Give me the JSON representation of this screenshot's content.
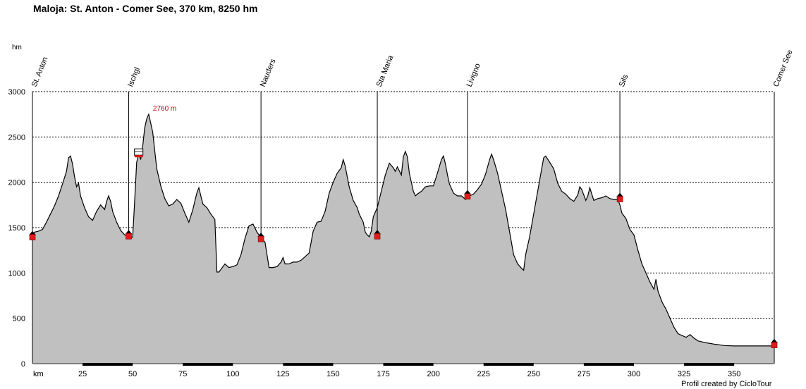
{
  "title": "Maloja: St. Anton - Comer See, 370 km, 8250 hm",
  "credit": "Profil created by CicloTour",
  "colors": {
    "fill": "#c0c0c0",
    "line": "#000000",
    "marker": "#e41a1a",
    "annotation": "#cc0000"
  },
  "chart_data": {
    "type": "area",
    "title": "Maloja: St. Anton - Comer See, 370 km, 8250 hm",
    "xlabel": "km",
    "ylabel": "hm",
    "xlim": [
      0,
      370
    ],
    "ylim": [
      0,
      3000
    ],
    "xticks": [
      25,
      50,
      75,
      100,
      125,
      150,
      175,
      200,
      225,
      250,
      275,
      300,
      325,
      350
    ],
    "yticks": [
      0,
      500,
      1000,
      1500,
      2000,
      2500,
      3000
    ],
    "grid": true,
    "profile": [
      [
        0,
        1410
      ],
      [
        1,
        1450
      ],
      [
        3,
        1460
      ],
      [
        5,
        1480
      ],
      [
        7,
        1560
      ],
      [
        9,
        1650
      ],
      [
        11,
        1740
      ],
      [
        13,
        1850
      ],
      [
        15,
        1980
      ],
      [
        17,
        2120
      ],
      [
        18,
        2270
      ],
      [
        19,
        2290
      ],
      [
        20,
        2200
      ],
      [
        21,
        2060
      ],
      [
        22,
        1950
      ],
      [
        23,
        1990
      ],
      [
        24,
        1850
      ],
      [
        26,
        1720
      ],
      [
        28,
        1620
      ],
      [
        30,
        1580
      ],
      [
        32,
        1680
      ],
      [
        34,
        1750
      ],
      [
        36,
        1700
      ],
      [
        37,
        1790
      ],
      [
        38,
        1850
      ],
      [
        39,
        1790
      ],
      [
        40,
        1680
      ],
      [
        42,
        1560
      ],
      [
        44,
        1470
      ],
      [
        46,
        1420
      ],
      [
        48,
        1400
      ],
      [
        49,
        1380
      ],
      [
        50,
        1400
      ],
      [
        51,
        1800
      ],
      [
        52,
        2220
      ],
      [
        53,
        2320
      ],
      [
        54,
        2250
      ],
      [
        55,
        2400
      ],
      [
        56,
        2600
      ],
      [
        57,
        2700
      ],
      [
        58,
        2750
      ],
      [
        59,
        2650
      ],
      [
        60,
        2550
      ],
      [
        61,
        2350
      ],
      [
        62,
        2150
      ],
      [
        64,
        1960
      ],
      [
        66,
        1820
      ],
      [
        68,
        1740
      ],
      [
        70,
        1760
      ],
      [
        72,
        1810
      ],
      [
        74,
        1770
      ],
      [
        76,
        1660
      ],
      [
        78,
        1560
      ],
      [
        80,
        1700
      ],
      [
        82,
        1880
      ],
      [
        83,
        1940
      ],
      [
        84,
        1850
      ],
      [
        85,
        1760
      ],
      [
        87,
        1720
      ],
      [
        89,
        1650
      ],
      [
        91,
        1590
      ],
      [
        92,
        1010
      ],
      [
        93,
        1010
      ],
      [
        94,
        1040
      ],
      [
        96,
        1100
      ],
      [
        98,
        1060
      ],
      [
        100,
        1070
      ],
      [
        102,
        1090
      ],
      [
        104,
        1200
      ],
      [
        106,
        1380
      ],
      [
        108,
        1520
      ],
      [
        110,
        1540
      ],
      [
        112,
        1450
      ],
      [
        114,
        1390
      ],
      [
        116,
        1340
      ],
      [
        118,
        1060
      ],
      [
        120,
        1060
      ],
      [
        122,
        1070
      ],
      [
        124,
        1120
      ],
      [
        125,
        1170
      ],
      [
        126,
        1100
      ],
      [
        128,
        1100
      ],
      [
        130,
        1120
      ],
      [
        132,
        1120
      ],
      [
        134,
        1140
      ],
      [
        136,
        1180
      ],
      [
        138,
        1220
      ],
      [
        140,
        1460
      ],
      [
        142,
        1560
      ],
      [
        144,
        1570
      ],
      [
        146,
        1680
      ],
      [
        148,
        1880
      ],
      [
        150,
        2000
      ],
      [
        152,
        2100
      ],
      [
        154,
        2160
      ],
      [
        155,
        2250
      ],
      [
        156,
        2180
      ],
      [
        158,
        1950
      ],
      [
        160,
        1800
      ],
      [
        162,
        1720
      ],
      [
        163,
        1650
      ],
      [
        165,
        1560
      ],
      [
        166,
        1450
      ],
      [
        167,
        1420
      ],
      [
        168,
        1400
      ],
      [
        169,
        1460
      ],
      [
        170,
        1620
      ],
      [
        172,
        1720
      ],
      [
        174,
        1900
      ],
      [
        176,
        2080
      ],
      [
        178,
        2210
      ],
      [
        180,
        2160
      ],
      [
        181,
        2120
      ],
      [
        182,
        2170
      ],
      [
        184,
        2080
      ],
      [
        185,
        2280
      ],
      [
        186,
        2340
      ],
      [
        187,
        2280
      ],
      [
        188,
        2100
      ],
      [
        190,
        1900
      ],
      [
        191,
        1850
      ],
      [
        192,
        1870
      ],
      [
        194,
        1900
      ],
      [
        196,
        1950
      ],
      [
        198,
        1960
      ],
      [
        200,
        1960
      ],
      [
        202,
        2100
      ],
      [
        204,
        2250
      ],
      [
        205,
        2290
      ],
      [
        206,
        2200
      ],
      [
        207,
        2080
      ],
      [
        208,
        1980
      ],
      [
        210,
        1880
      ],
      [
        212,
        1850
      ],
      [
        214,
        1850
      ],
      [
        215,
        1830
      ],
      [
        216,
        1810
      ],
      [
        217,
        1820
      ],
      [
        218,
        1850
      ],
      [
        220,
        1870
      ],
      [
        222,
        1920
      ],
      [
        224,
        1980
      ],
      [
        226,
        2090
      ],
      [
        228,
        2250
      ],
      [
        229,
        2310
      ],
      [
        230,
        2250
      ],
      [
        232,
        2100
      ],
      [
        234,
        1900
      ],
      [
        236,
        1700
      ],
      [
        238,
        1450
      ],
      [
        240,
        1200
      ],
      [
        242,
        1100
      ],
      [
        244,
        1050
      ],
      [
        245,
        1030
      ],
      [
        246,
        1200
      ],
      [
        248,
        1400
      ],
      [
        250,
        1650
      ],
      [
        252,
        1900
      ],
      [
        254,
        2150
      ],
      [
        255,
        2270
      ],
      [
        256,
        2290
      ],
      [
        258,
        2220
      ],
      [
        260,
        2150
      ],
      [
        262,
        1990
      ],
      [
        264,
        1900
      ],
      [
        266,
        1870
      ],
      [
        268,
        1820
      ],
      [
        270,
        1790
      ],
      [
        272,
        1860
      ],
      [
        273,
        1950
      ],
      [
        274,
        1920
      ],
      [
        275,
        1860
      ],
      [
        276,
        1800
      ],
      [
        277,
        1850
      ],
      [
        278,
        1940
      ],
      [
        280,
        1800
      ],
      [
        282,
        1820
      ],
      [
        284,
        1830
      ],
      [
        286,
        1850
      ],
      [
        288,
        1820
      ],
      [
        290,
        1810
      ],
      [
        292,
        1810
      ],
      [
        293,
        1750
      ],
      [
        294,
        1660
      ],
      [
        296,
        1600
      ],
      [
        298,
        1480
      ],
      [
        300,
        1420
      ],
      [
        302,
        1250
      ],
      [
        304,
        1100
      ],
      [
        306,
        1000
      ],
      [
        308,
        900
      ],
      [
        310,
        820
      ],
      [
        311,
        930
      ],
      [
        312,
        800
      ],
      [
        314,
        680
      ],
      [
        316,
        600
      ],
      [
        318,
        500
      ],
      [
        320,
        400
      ],
      [
        322,
        330
      ],
      [
        324,
        310
      ],
      [
        326,
        290
      ],
      [
        328,
        320
      ],
      [
        330,
        280
      ],
      [
        332,
        250
      ],
      [
        336,
        230
      ],
      [
        340,
        215
      ],
      [
        345,
        200
      ],
      [
        350,
        195
      ],
      [
        355,
        195
      ],
      [
        370,
        195
      ]
    ],
    "waypoints": [
      {
        "name": "St. Anton",
        "km": 0,
        "ele": 1410
      },
      {
        "name": "Ischgl",
        "km": 48,
        "ele": 1420
      },
      {
        "name": "Nauders",
        "km": 114,
        "ele": 1390
      },
      {
        "name": "Sta Maria",
        "km": 172,
        "ele": 1420
      },
      {
        "name": "Livigno",
        "km": 217,
        "ele": 1860
      },
      {
        "name": "Sils",
        "km": 293,
        "ele": 1830
      },
      {
        "name": "Comer See",
        "km": 370,
        "ele": 220
      }
    ],
    "annotations": [
      {
        "text": "2760 m",
        "km": 58,
        "ele": 2760
      }
    ],
    "cablecar": {
      "km": 53,
      "ele": 2330
    }
  }
}
